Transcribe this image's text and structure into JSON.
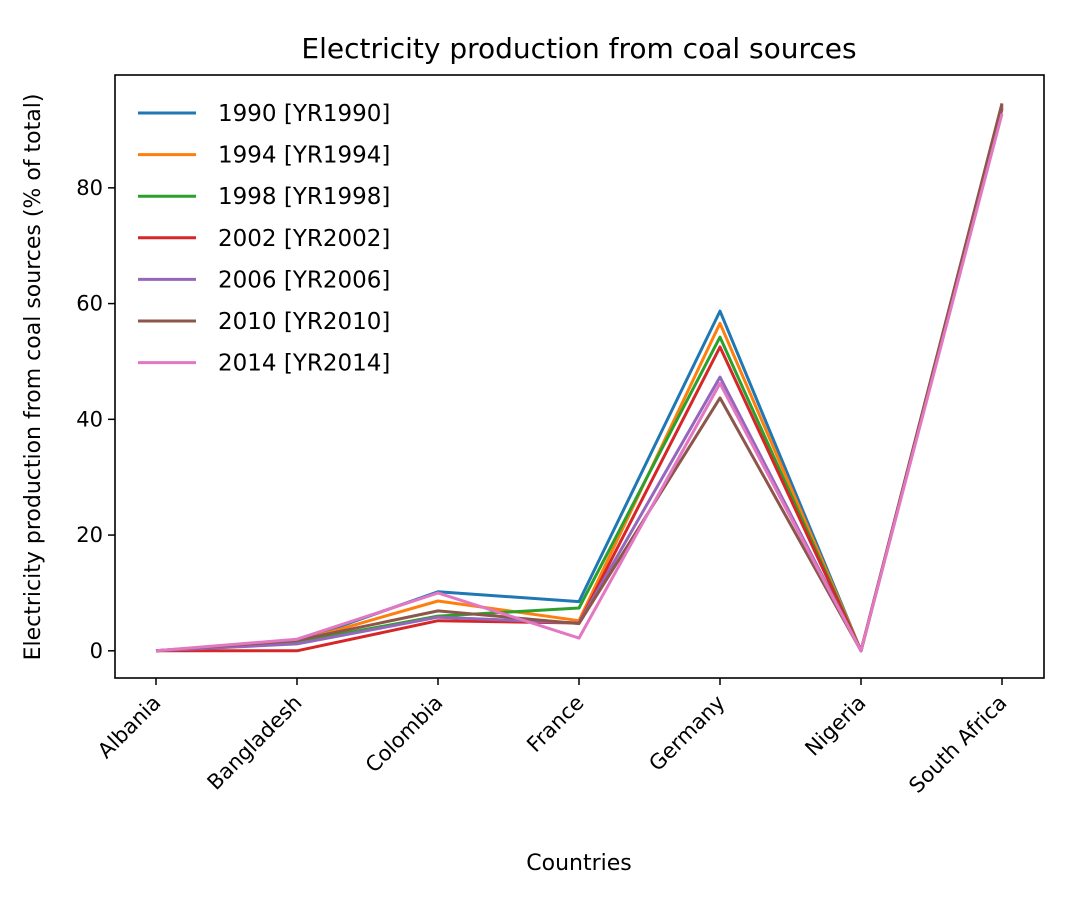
{
  "chart_data": {
    "type": "line",
    "title": "Electricity production from coal sources",
    "xlabel": "Countries",
    "ylabel": "Electricity production from coal sources (% of total)",
    "categories": [
      "Albania",
      "Bangladesh",
      "Colombia",
      "France",
      "Germany",
      "Nigeria",
      "South Africa"
    ],
    "ylim": [
      -4.7,
      99.5
    ],
    "yticks": [
      0,
      20,
      40,
      60,
      80
    ],
    "grid": false,
    "legend_position": "upper-left",
    "series": [
      {
        "name": "1990 [YR1990]",
        "color": "#1f77b4",
        "values": [
          0,
          1.6,
          10.2,
          8.5,
          58.7,
          0,
          94.3
        ]
      },
      {
        "name": "1994 [YR1994]",
        "color": "#ff7f0e",
        "values": [
          0,
          1.6,
          8.6,
          5.2,
          56.6,
          0,
          94.0
        ]
      },
      {
        "name": "1998 [YR1998]",
        "color": "#2ca02c",
        "values": [
          0,
          1.5,
          6.0,
          7.4,
          54.2,
          0,
          93.6
        ]
      },
      {
        "name": "2002 [YR2002]",
        "color": "#d62728",
        "values": [
          0,
          0,
          5.2,
          4.8,
          52.5,
          0,
          93.8
        ]
      },
      {
        "name": "2006 [YR2006]",
        "color": "#9467bd",
        "values": [
          0,
          1.2,
          5.8,
          4.8,
          47.3,
          0,
          94.3
        ]
      },
      {
        "name": "2010 [YR2010]",
        "color": "#8c564b",
        "values": [
          0,
          1.8,
          6.9,
          4.7,
          43.7,
          0,
          94.6
        ]
      },
      {
        "name": "2014 [YR2014]",
        "color": "#e377c2",
        "values": [
          0,
          2.0,
          10.0,
          2.2,
          46.2,
          0,
          92.8
        ]
      }
    ]
  }
}
